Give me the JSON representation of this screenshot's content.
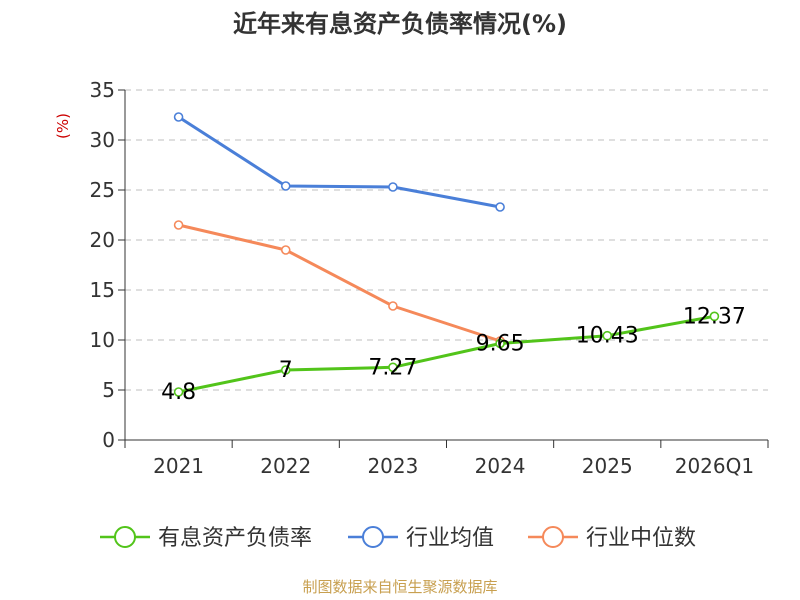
{
  "chart_data": {
    "type": "line",
    "title": "近年来有息资产负债率情况(%)",
    "ylabel": "(%)",
    "xlabel": "",
    "categories": [
      "2021",
      "2022",
      "2023",
      "2024",
      "2025",
      "2026Q1"
    ],
    "ylim": [
      0,
      35
    ],
    "yticks": [
      0,
      5,
      10,
      15,
      20,
      25,
      30,
      35
    ],
    "grid": true,
    "legend_position": "bottom",
    "series": [
      {
        "name": "有息资产负债率",
        "color": "#52c41a",
        "values": [
          4.8,
          7.0,
          7.27,
          9.65,
          10.43,
          12.37
        ],
        "labels": [
          "4.8",
          "7",
          "7.27",
          "9.65",
          "10.43",
          "12.37"
        ]
      },
      {
        "name": "行业均值",
        "color": "#4a7fd8",
        "values": [
          32.3,
          25.4,
          25.3,
          23.3,
          null,
          null
        ],
        "labels": null
      },
      {
        "name": "行业中位数",
        "color": "#f5895a",
        "values": [
          21.5,
          19.0,
          13.4,
          9.9,
          null,
          null
        ],
        "labels": null
      }
    ],
    "source": "制图数据来自恒生聚源数据库"
  }
}
